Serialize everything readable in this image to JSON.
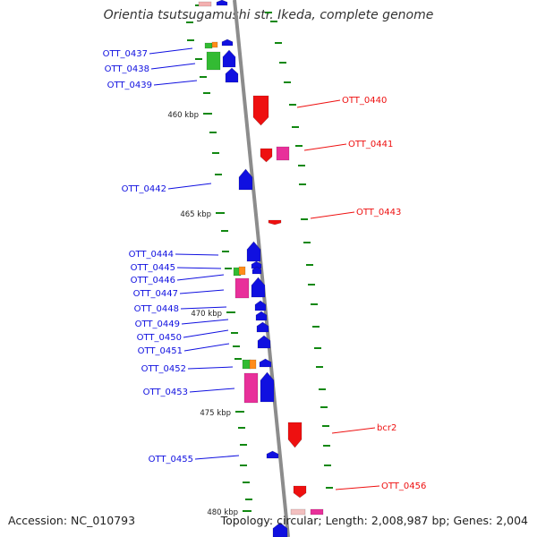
{
  "title": "Orientia tsutsugamushi str. Ikeda, complete genome",
  "accession": "Accession: NC_010793",
  "summary": "Topology: circular; Length: 2,008,987 bp; Genes: 2,004",
  "colors": {
    "forward": "#1010e0",
    "reverse": "#ee1010",
    "pink": "#e8309a",
    "green": "#33bb33",
    "orange": "#ff8c1a",
    "tick": "#118811",
    "backbone": "#8c8c8c"
  },
  "kbp_labels": [
    "460 kbp",
    "465 kbp",
    "470 kbp",
    "475 kbp",
    "480 kbp"
  ],
  "genes_left": [
    "OTT_0437",
    "OTT_0438",
    "OTT_0439",
    "OTT_0442",
    "OTT_0444",
    "OTT_0445",
    "OTT_0446",
    "OTT_0447",
    "OTT_0448",
    "OTT_0449",
    "OTT_0450",
    "OTT_0451",
    "OTT_0452",
    "OTT_0453",
    "OTT_0455"
  ],
  "genes_right": [
    "OTT_0440",
    "OTT_0441",
    "OTT_0443",
    "bcr2",
    "OTT_0456"
  ]
}
